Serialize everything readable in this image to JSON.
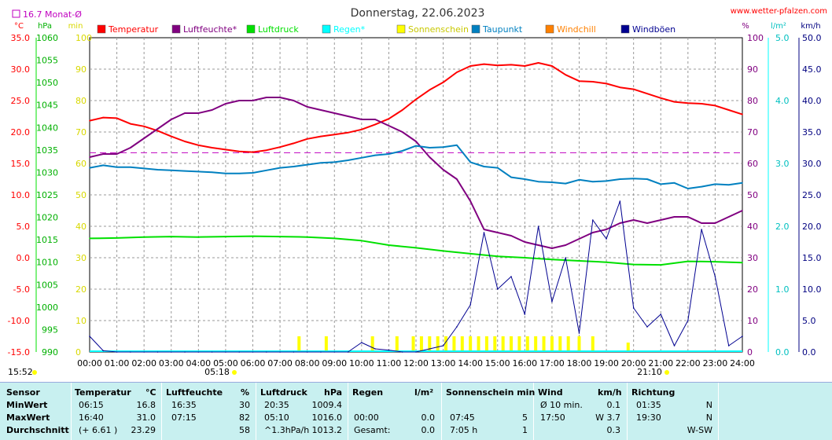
{
  "header": {
    "title": "Donnerstag, 22.06.2023",
    "site": "www.wetter-pfalzen.com",
    "monthly_avg": "16.7 Monat-Ø",
    "start_time": "15:52",
    "sunrise": "05:18",
    "sunset": "21:10"
  },
  "colors": {
    "temperature": "#ff0000",
    "humidity": "#800080",
    "pressure": "#00e000",
    "rain": "#00ffff",
    "sunshine": "#ffff00",
    "dewpoint": "#0080c0",
    "windchill": "#ff8000",
    "gust": "#000090",
    "grid": "#999999",
    "table_bg": "#c8f0f0"
  },
  "chart_data": {
    "type": "line",
    "x_ticks": [
      "00:00",
      "01:00",
      "02:00",
      "03:00",
      "04:00",
      "05:00",
      "06:00",
      "07:00",
      "08:00",
      "09:00",
      "10:00",
      "11:00",
      "12:00",
      "13:00",
      "14:00",
      "15:00",
      "16:00",
      "17:00",
      "18:00",
      "19:00",
      "20:00",
      "21:00",
      "22:00",
      "23:00",
      "24:00"
    ],
    "axes": {
      "temp": {
        "unit": "°C",
        "range": [
          -15,
          35
        ],
        "ticks": [
          "35.0",
          "30.0",
          "25.0",
          "20.0",
          "15.0",
          "10.0",
          "5.0",
          "0.0",
          "-5.0",
          "-10.0",
          "-15.0"
        ]
      },
      "pressure": {
        "unit": "hPa",
        "range": [
          990,
          1060
        ],
        "ticks": [
          "1060",
          "1055",
          "1050",
          "1045",
          "1040",
          "1035",
          "1030",
          "1025",
          "1020",
          "1015",
          "1010",
          "1005",
          "1000",
          "995",
          "990"
        ]
      },
      "sunshine": {
        "unit": "min",
        "range": [
          0,
          100
        ],
        "ticks": [
          "100",
          "90",
          "80",
          "70",
          "60",
          "50",
          "40",
          "30",
          "20",
          "10",
          "0"
        ]
      },
      "humidity": {
        "unit": "%",
        "range": [
          0,
          100
        ],
        "ticks": [
          "100",
          "90",
          "80",
          "70",
          "60",
          "50",
          "40",
          "30",
          "20",
          "10",
          "0"
        ]
      },
      "rain": {
        "unit": "l/m²",
        "range": [
          0,
          5
        ],
        "ticks": [
          "5.0",
          "4.0",
          "3.0",
          "2.0",
          "1.0",
          "0.0"
        ]
      },
      "wind": {
        "unit": "km/h",
        "range": [
          0,
          50
        ],
        "ticks": [
          "50.0",
          "45.0",
          "40.0",
          "35.0",
          "30.0",
          "25.0",
          "20.0",
          "15.0",
          "10.0",
          "5.0",
          "0.0"
        ]
      }
    },
    "legend": [
      "Temperatur",
      "Luftfeuchte*",
      "Luftdruck",
      "Regen*",
      "Sonnenschein",
      "Taupunkt",
      "Windchill",
      "Windböen"
    ],
    "monthly_avg_line": 16.7,
    "series": [
      {
        "name": "Temperatur",
        "axis": "temp",
        "x": [
          0,
          0.5,
          1,
          1.5,
          2,
          2.5,
          3,
          3.5,
          4,
          4.5,
          5,
          5.5,
          6,
          6.5,
          7,
          7.5,
          8,
          8.5,
          9,
          9.5,
          10,
          10.5,
          11,
          11.5,
          12,
          12.5,
          13,
          13.5,
          14,
          14.5,
          15,
          15.5,
          16,
          16.5,
          17,
          17.5,
          18,
          18.5,
          19,
          19.5,
          20,
          20.5,
          21,
          21.5,
          22,
          22.5,
          23,
          23.5,
          24
        ],
        "values": [
          21.8,
          22.3,
          22.2,
          21.3,
          20.9,
          20.2,
          19.3,
          18.5,
          17.9,
          17.5,
          17.2,
          16.9,
          16.8,
          17.1,
          17.6,
          18.2,
          18.9,
          19.3,
          19.6,
          19.9,
          20.4,
          21.2,
          22.1,
          23.5,
          25.2,
          26.7,
          27.9,
          29.5,
          30.5,
          30.8,
          30.6,
          30.7,
          30.5,
          31.0,
          30.5,
          29.1,
          28.1,
          28.0,
          27.7,
          27.1,
          26.8,
          26.1,
          25.4,
          24.8,
          24.6,
          24.5,
          24.2,
          23.5,
          22.8
        ]
      },
      {
        "name": "Luftfeuchte*",
        "axis": "humidity",
        "x": [
          0,
          0.5,
          1,
          1.5,
          2,
          2.5,
          3,
          3.5,
          4,
          4.5,
          5,
          5.5,
          6,
          6.5,
          7,
          7.5,
          8,
          8.5,
          9,
          9.5,
          10,
          10.5,
          11,
          11.5,
          12,
          12.5,
          13,
          13.5,
          14,
          14.5,
          15,
          15.5,
          16,
          16.5,
          17,
          17.5,
          18,
          18.5,
          19,
          19.5,
          20,
          20.5,
          21,
          21.5,
          22,
          22.5,
          23,
          23.5,
          24
        ],
        "values": [
          62,
          63,
          63,
          65,
          68,
          71,
          74,
          76,
          76,
          77,
          79,
          80,
          80,
          81,
          81,
          80,
          78,
          77,
          76,
          75,
          74,
          74,
          72,
          70,
          67,
          62,
          58,
          55,
          48,
          39,
          38,
          37,
          35,
          34,
          33,
          34,
          36,
          38,
          39,
          41,
          42,
          41,
          42,
          43,
          43,
          41,
          41,
          43,
          45
        ]
      },
      {
        "name": "Luftdruck",
        "axis": "pressure",
        "x": [
          0,
          1,
          2,
          3,
          4,
          5,
          6,
          7,
          8,
          9,
          10,
          11,
          12,
          13,
          14,
          15,
          16,
          17,
          18,
          19,
          20,
          21,
          22,
          23,
          24
        ],
        "values": [
          1015.3,
          1015.4,
          1015.6,
          1015.7,
          1015.6,
          1015.7,
          1015.8,
          1015.7,
          1015.6,
          1015.3,
          1014.8,
          1013.8,
          1013.2,
          1012.5,
          1011.9,
          1011.3,
          1011.0,
          1010.6,
          1010.3,
          1010.0,
          1009.5,
          1009.4,
          1010.2,
          1010.1,
          1009.9
        ]
      },
      {
        "name": "Taupunkt",
        "axis": "temp",
        "x": [
          0,
          0.5,
          1,
          1.5,
          2,
          2.5,
          3,
          3.5,
          4,
          4.5,
          5,
          5.5,
          6,
          6.5,
          7,
          7.5,
          8,
          8.5,
          9,
          9.5,
          10,
          10.5,
          11,
          11.5,
          12,
          12.5,
          13,
          13.5,
          14,
          14.5,
          15,
          15.5,
          16,
          16.5,
          17,
          17.5,
          18,
          18.5,
          19,
          19.5,
          20,
          20.5,
          21,
          21.5,
          22,
          22.5,
          23,
          23.5,
          24
        ],
        "values": [
          14.3,
          14.7,
          14.4,
          14.4,
          14.2,
          14.0,
          13.9,
          13.8,
          13.7,
          13.6,
          13.4,
          13.4,
          13.5,
          13.9,
          14.3,
          14.5,
          14.8,
          15.1,
          15.2,
          15.5,
          15.9,
          16.3,
          16.5,
          17.0,
          17.8,
          17.5,
          17.6,
          17.9,
          15.2,
          14.5,
          14.3,
          12.8,
          12.5,
          12.1,
          12.0,
          11.8,
          12.4,
          12.1,
          12.2,
          12.5,
          12.6,
          12.5,
          11.7,
          11.9,
          11.0,
          11.3,
          11.7,
          11.6,
          11.9
        ]
      },
      {
        "name": "Windböen",
        "axis": "wind",
        "x": [
          0,
          0.5,
          1,
          1.5,
          2,
          2.5,
          3,
          3.5,
          4,
          4.5,
          5,
          5.5,
          6,
          6.5,
          7,
          7.5,
          8,
          8.5,
          9,
          9.5,
          10,
          10.5,
          11,
          11.5,
          12,
          12.5,
          13,
          13.5,
          14,
          14.5,
          15,
          15.5,
          16,
          16.5,
          17,
          17.5,
          18,
          18.5,
          19,
          19.5,
          20,
          20.5,
          21,
          21.5,
          22,
          22.5,
          23,
          23.5,
          24
        ],
        "values": [
          2.5,
          0.2,
          0.0,
          0.0,
          0.0,
          0.0,
          0.0,
          0.0,
          0.0,
          0.0,
          0.0,
          0.0,
          0.0,
          0.0,
          0.0,
          0.0,
          0.0,
          0.0,
          0.0,
          0.0,
          1.5,
          0.5,
          0.3,
          0.0,
          0.0,
          0.5,
          1.0,
          4.0,
          7.5,
          19.0,
          10.0,
          12.0,
          6.0,
          20.0,
          8.0,
          15.0,
          3.0,
          21.0,
          18.0,
          24.0,
          7.0,
          4.0,
          6.0,
          1.0,
          5.0,
          19.5,
          12.0,
          1.0,
          2.5
        ]
      },
      {
        "name": "Sonnenschein",
        "axis": "sunshine",
        "x": [
          7.7,
          8.7,
          10.4,
          11.3,
          11.9,
          12.2,
          12.5,
          12.8,
          13.1,
          13.4,
          13.7,
          14.0,
          14.3,
          14.6,
          14.9,
          15.2,
          15.5,
          15.8,
          16.1,
          16.4,
          16.7,
          17.0,
          17.3,
          17.6,
          18.0,
          18.5,
          19.8
        ],
        "values": [
          5,
          5,
          5,
          5,
          5,
          5,
          5,
          5,
          5,
          5,
          5,
          5,
          5,
          5,
          5,
          5,
          5,
          5,
          5,
          5,
          5,
          5,
          5,
          5,
          5,
          5,
          3
        ]
      }
    ]
  },
  "table": {
    "headers": {
      "sensor": "Sensor",
      "temp": "Temperatur",
      "temp_unit": "°C",
      "hum": "Luftfeuchte",
      "hum_unit": "%",
      "press": "Luftdruck",
      "press_unit": "hPa",
      "rain": "Regen",
      "rain_unit": "l/m²",
      "sun": "Sonnenschein min",
      "wind": "Wind",
      "wind_unit": "km/h",
      "dir": "Richtung"
    },
    "rows": [
      {
        "label": "MinWert",
        "temp_time": "06:15",
        "temp_val": "16.8",
        "hum_time": "16:35",
        "hum_val": "30",
        "press_time": "20:35",
        "press_val": "1009.4",
        "rain_time": "",
        "rain_val": "",
        "sun_time": "",
        "sun_val": "",
        "wind_time": "Ø 10 min.",
        "wind_val": "0.1",
        "dir_time": "01:35",
        "dir_val": "N"
      },
      {
        "label": "MaxWert",
        "temp_time": "16:40",
        "temp_val": "31.0",
        "hum_time": "07:15",
        "hum_val": "82",
        "press_time": "05:10",
        "press_val": "1016.0",
        "rain_time": "00:00",
        "rain_val": "0.0",
        "sun_time": "07:45",
        "sun_val": "5",
        "wind_time": "17:50",
        "wind_val": "W 3.7",
        "dir_time": "19:30",
        "dir_val": "N"
      },
      {
        "label": "Durchschnitt",
        "temp_time": "(+ 6.61 )",
        "temp_val": "23.29",
        "hum_time": "",
        "hum_val": "58",
        "press_time": "^1.3hPa/h",
        "press_val": "1013.2",
        "rain_time": "Gesamt:",
        "rain_val": "0.0",
        "sun_time": "7:05 h",
        "sun_val": "1",
        "wind_time": "",
        "wind_val": "0.3",
        "dir_time": "",
        "dir_val": "W-SW"
      }
    ]
  }
}
